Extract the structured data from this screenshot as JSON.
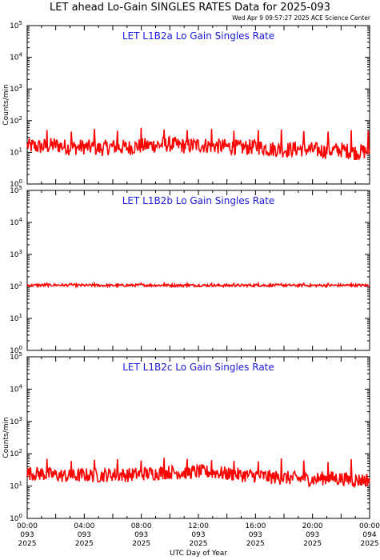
{
  "page": {
    "title": "LET ahead Lo-Gain SINGLES RATES Data for 2025-093",
    "timestamp": "Wed Apr  9 09:57:27 2025 ACE Science Center"
  },
  "colors": {
    "series": "#ff0000",
    "panel_title": "#1a1adc",
    "axes": "#000000"
  },
  "chart_data": [
    {
      "type": "line",
      "title": "LET L1B2a Lo Gain Singles Rate",
      "ylabel": "Counts/min",
      "yscale": "log",
      "ylim": [
        1,
        100000
      ],
      "xlim": [
        0,
        24
      ],
      "baseline": 15,
      "noise": 0.25,
      "x": [
        0,
        1,
        2,
        3,
        4,
        5,
        6,
        7,
        8,
        9,
        10,
        11,
        12,
        13,
        14,
        15,
        16,
        17,
        18,
        19,
        20,
        21,
        22,
        23,
        24
      ],
      "y": [
        16,
        15,
        17,
        14,
        15,
        13,
        15,
        14,
        16,
        17,
        18,
        16,
        17,
        16,
        15,
        14,
        15,
        13,
        12,
        13,
        12,
        11,
        12,
        10,
        11
      ],
      "spikes_x": [
        1.4,
        3.1,
        4.7,
        6.3,
        8.0,
        9.6,
        11.2,
        12.9,
        14.5,
        16.2,
        17.8,
        19.4,
        21.1,
        22.7,
        23.9
      ],
      "spikes_y": [
        50,
        45,
        55,
        48,
        60,
        52,
        50,
        55,
        48,
        50,
        52,
        47,
        45,
        50,
        48
      ]
    },
    {
      "type": "line",
      "title": "LET L1B2b Lo Gain Singles Rate",
      "ylabel": "",
      "yscale": "log",
      "ylim": [
        1,
        100000
      ],
      "xlim": [
        0,
        24
      ],
      "baseline": 108,
      "noise": 0.04,
      "x": [
        0,
        2,
        4,
        6,
        8,
        10,
        12,
        14,
        16,
        18,
        20,
        22,
        24
      ],
      "y": [
        108,
        110,
        108,
        107,
        109,
        108,
        108,
        107,
        108,
        108,
        107,
        108,
        108
      ],
      "spikes_x": [
        1.4,
        3.1,
        4.7,
        6.3,
        8.0,
        9.6,
        11.2,
        12.9,
        14.5,
        16.2,
        17.8,
        19.4,
        21.1,
        22.7
      ],
      "spikes_y": [
        125,
        122,
        124,
        123,
        125,
        124,
        122,
        123,
        124,
        123,
        122,
        124,
        123,
        122
      ]
    },
    {
      "type": "line",
      "title": "LET L1B2c Lo Gain Singles Rate",
      "ylabel": "Counts/min",
      "yscale": "log",
      "ylim": [
        1,
        100000
      ],
      "xlim": [
        0,
        24
      ],
      "baseline": 22,
      "noise": 0.22,
      "x": [
        0,
        1,
        2,
        3,
        4,
        5,
        6,
        7,
        8,
        9,
        10,
        11,
        12,
        13,
        14,
        15,
        16,
        17,
        18,
        19,
        20,
        21,
        22,
        23,
        24
      ],
      "y": [
        25,
        24,
        22,
        20,
        22,
        21,
        23,
        22,
        24,
        25,
        27,
        26,
        28,
        27,
        24,
        22,
        21,
        19,
        18,
        17,
        16,
        18,
        17,
        15,
        16
      ],
      "spikes_x": [
        1.4,
        3.1,
        4.7,
        6.3,
        8.0,
        9.6,
        11.2,
        12.9,
        14.5,
        16.2,
        17.8,
        19.4,
        21.1,
        22.7
      ],
      "spikes_y": [
        70,
        60,
        65,
        68,
        62,
        75,
        70,
        63,
        60,
        58,
        72,
        62,
        55,
        68
      ]
    }
  ],
  "x_axis": {
    "label": "UTC Day of Year",
    "ticks": [
      {
        "x": 0,
        "time": "00:00",
        "doy": "093",
        "year": "2025"
      },
      {
        "x": 4,
        "time": "04:00",
        "doy": "093",
        "year": "2025"
      },
      {
        "x": 8,
        "time": "08:00",
        "doy": "093",
        "year": "2025"
      },
      {
        "x": 12,
        "time": "12:00",
        "doy": "093",
        "year": "2025"
      },
      {
        "x": 16,
        "time": "16:00",
        "doy": "093",
        "year": "2025"
      },
      {
        "x": 20,
        "time": "20:00",
        "doy": "093",
        "year": "2025"
      },
      {
        "x": 24,
        "time": "00:00",
        "doy": "094",
        "year": "2025"
      }
    ]
  },
  "y_axis": {
    "ticks": [
      {
        "value": 1,
        "label": "10",
        "exp": "0"
      },
      {
        "value": 10,
        "label": "10",
        "exp": "1"
      },
      {
        "value": 100,
        "label": "10",
        "exp": "2"
      },
      {
        "value": 1000,
        "label": "10",
        "exp": "3"
      },
      {
        "value": 10000,
        "label": "10",
        "exp": "4"
      },
      {
        "value": 100000,
        "label": "10",
        "exp": "5"
      }
    ]
  }
}
